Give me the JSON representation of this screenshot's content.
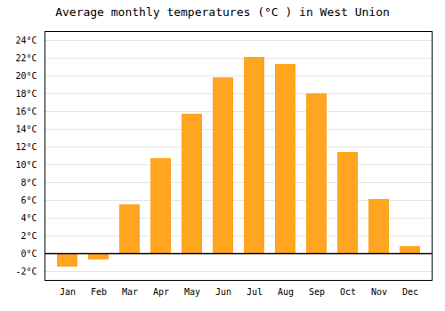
{
  "chart_data": {
    "type": "bar",
    "title": "Average monthly temperatures (°C ) in West Union",
    "categories": [
      "Jan",
      "Feb",
      "Mar",
      "Apr",
      "May",
      "Jun",
      "Jul",
      "Aug",
      "Sep",
      "Oct",
      "Nov",
      "Dec"
    ],
    "values": [
      -1.5,
      -0.7,
      5.5,
      10.7,
      15.7,
      19.8,
      22.1,
      21.3,
      18.0,
      11.4,
      6.1,
      0.8
    ],
    "color": "#FFA520",
    "ylim": [
      -3,
      25
    ],
    "yticks": [
      {
        "value": -2,
        "label": "-2°C"
      },
      {
        "value": 0,
        "label": "0°C"
      },
      {
        "value": 2,
        "label": "2°C"
      },
      {
        "value": 4,
        "label": "4°C"
      },
      {
        "value": 6,
        "label": "6°C"
      },
      {
        "value": 8,
        "label": "8°C"
      },
      {
        "value": 10,
        "label": "10°C"
      },
      {
        "value": 12,
        "label": "12°C"
      },
      {
        "value": 14,
        "label": "14°C"
      },
      {
        "value": 16,
        "label": "16°C"
      },
      {
        "value": 18,
        "label": "18°C"
      },
      {
        "value": 20,
        "label": "20°C"
      },
      {
        "value": 22,
        "label": "22°C"
      },
      {
        "value": 24,
        "label": "24°C"
      }
    ],
    "grid": true
  }
}
